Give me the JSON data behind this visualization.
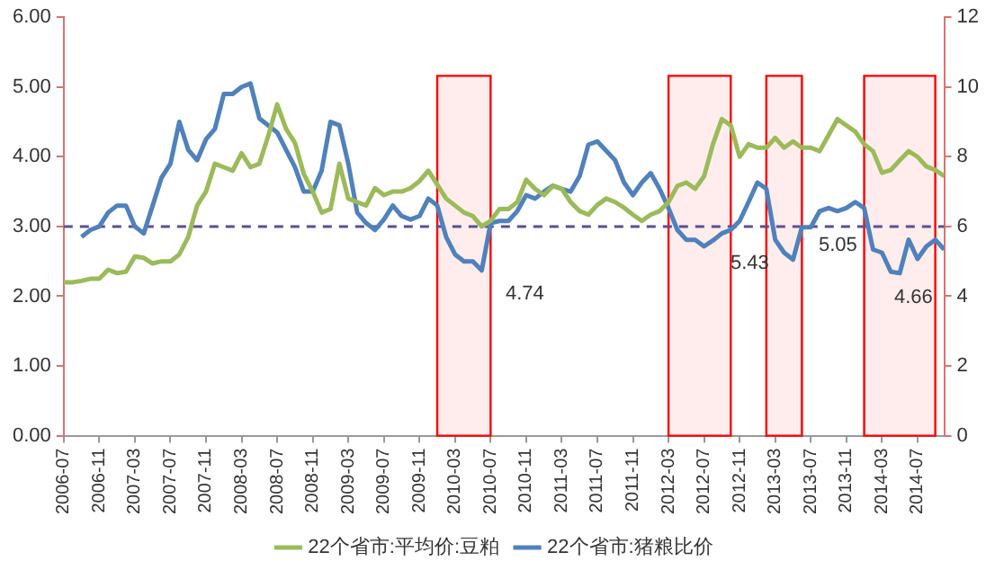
{
  "chart_data": {
    "type": "line",
    "x": [
      "2006-07",
      "2006-08",
      "2006-09",
      "2006-10",
      "2006-11",
      "2006-12",
      "2007-01",
      "2007-02",
      "2007-03",
      "2007-04",
      "2007-05",
      "2007-06",
      "2007-07",
      "2007-08",
      "2007-09",
      "2007-10",
      "2007-11",
      "2007-12",
      "2008-01",
      "2008-02",
      "2008-03",
      "2008-04",
      "2008-05",
      "2008-06",
      "2008-07",
      "2008-08",
      "2008-09",
      "2008-10",
      "2008-11",
      "2008-12",
      "2009-01",
      "2009-02",
      "2009-03",
      "2009-04",
      "2009-05",
      "2009-06",
      "2009-07",
      "2009-08",
      "2009-09",
      "2009-10",
      "2009-11",
      "2009-12",
      "2010-01",
      "2010-02",
      "2010-03",
      "2010-04",
      "2010-05",
      "2010-06",
      "2010-07",
      "2010-08",
      "2010-09",
      "2010-10",
      "2010-11",
      "2010-12",
      "2011-01",
      "2011-02",
      "2011-03",
      "2011-04",
      "2011-05",
      "2011-06",
      "2011-07",
      "2011-08",
      "2011-09",
      "2011-10",
      "2011-11",
      "2011-12",
      "2012-01",
      "2012-02",
      "2012-03",
      "2012-04",
      "2012-05",
      "2012-06",
      "2012-07",
      "2012-08",
      "2012-09",
      "2012-10",
      "2012-11",
      "2012-12",
      "2013-01",
      "2013-02",
      "2013-03",
      "2013-04",
      "2013-05",
      "2013-06",
      "2013-07",
      "2013-08",
      "2013-09",
      "2013-10",
      "2013-11",
      "2013-12",
      "2014-01",
      "2014-02",
      "2014-03",
      "2014-04",
      "2014-05",
      "2014-06",
      "2014-07",
      "2014-08",
      "2014-09",
      "2014-10"
    ],
    "series": [
      {
        "name": "22个省市:平均价:豆粕",
        "color": "#9bbb59",
        "values": [
          2.2,
          2.2,
          2.22,
          2.25,
          2.25,
          2.38,
          2.33,
          2.35,
          2.57,
          2.55,
          2.47,
          2.5,
          2.5,
          2.6,
          2.85,
          3.3,
          3.5,
          3.9,
          3.85,
          3.8,
          4.05,
          3.85,
          3.9,
          4.3,
          4.75,
          4.4,
          4.2,
          3.75,
          3.5,
          3.2,
          3.25,
          3.9,
          3.4,
          3.35,
          3.3,
          3.55,
          3.45,
          3.5,
          3.5,
          3.55,
          3.65,
          3.8,
          3.6,
          3.4,
          3.3,
          3.2,
          3.15,
          3.0,
          3.08,
          3.25,
          3.25,
          3.35,
          3.67,
          3.54,
          3.45,
          3.58,
          3.54,
          3.35,
          3.22,
          3.17,
          3.31,
          3.4,
          3.35,
          3.27,
          3.17,
          3.08,
          3.17,
          3.22,
          3.35,
          3.58,
          3.63,
          3.54,
          3.72,
          4.18,
          4.54,
          4.45,
          4.0,
          4.18,
          4.13,
          4.13,
          4.27,
          4.13,
          4.22,
          4.13,
          4.13,
          4.08,
          4.31,
          4.54,
          4.45,
          4.36,
          4.18,
          4.08,
          3.77,
          3.81,
          3.95,
          4.08,
          4.0,
          3.86,
          3.81,
          3.72
        ]
      },
      {
        "name": "22个省市:猪粮比价",
        "color": "#4f81bd",
        "axis": "y2",
        "values": [
          null,
          null,
          5.7,
          5.9,
          6.0,
          6.4,
          6.6,
          6.6,
          6.0,
          5.8,
          6.6,
          7.4,
          7.8,
          9.0,
          8.2,
          7.9,
          8.5,
          8.8,
          9.8,
          9.8,
          10.0,
          10.1,
          9.1,
          8.9,
          8.7,
          8.2,
          7.7,
          7.0,
          7.0,
          7.6,
          9.0,
          8.9,
          7.8,
          6.4,
          6.1,
          5.9,
          6.2,
          6.6,
          6.3,
          6.2,
          6.3,
          6.8,
          6.6,
          5.7,
          5.2,
          5.0,
          5.0,
          4.74,
          6.1,
          6.16,
          6.16,
          6.44,
          6.9,
          6.8,
          7.0,
          7.17,
          7.08,
          7.0,
          7.44,
          8.35,
          8.44,
          8.17,
          7.9,
          7.26,
          6.9,
          7.26,
          7.53,
          7.08,
          6.53,
          5.9,
          5.62,
          5.62,
          5.43,
          5.6,
          5.8,
          5.9,
          6.16,
          6.7,
          7.26,
          7.08,
          5.62,
          5.25,
          5.05,
          5.98,
          5.98,
          6.44,
          6.53,
          6.44,
          6.53,
          6.7,
          6.53,
          5.34,
          5.25,
          4.7,
          4.66,
          5.62,
          5.07,
          5.43,
          5.62,
          5.34
        ]
      }
    ],
    "xlim": [
      "2006-07",
      "2014-10"
    ],
    "xticks": [
      "2006-07",
      "2006-11",
      "2007-03",
      "2007-07",
      "2007-11",
      "2008-03",
      "2008-07",
      "2008-11",
      "2009-03",
      "2009-07",
      "2009-11",
      "2010-03",
      "2010-07",
      "2010-11",
      "2011-03",
      "2011-07",
      "2011-11",
      "2012-03",
      "2012-07",
      "2012-11",
      "2013-03",
      "2013-07",
      "2013-11",
      "2014-03",
      "2014-07"
    ],
    "ylim": [
      0,
      6
    ],
    "yticks": [
      {
        "value": 0,
        "label": "0.00"
      },
      {
        "value": 1,
        "label": "1.00"
      },
      {
        "value": 2,
        "label": "2.00"
      },
      {
        "value": 3,
        "label": "3.00"
      },
      {
        "value": 4,
        "label": "4.00"
      },
      {
        "value": 5,
        "label": "5.00"
      },
      {
        "value": 6,
        "label": "6.00"
      }
    ],
    "y2lim": [
      0,
      12
    ],
    "y2ticks": [
      0,
      2,
      4,
      6,
      8,
      10,
      12
    ],
    "ref_lines": [
      {
        "axis": "y",
        "value": 3,
        "color": "#5a4f96",
        "line_style": "dashed"
      }
    ],
    "bands": [
      {
        "axis": "x",
        "from": "2010-01",
        "to": "2010-07",
        "color": "#ff0000"
      },
      {
        "axis": "x",
        "from": "2012-03",
        "to": "2012-10",
        "color": "#ff0000"
      },
      {
        "axis": "x",
        "from": "2013-02",
        "to": "2013-06",
        "color": "#ff0000"
      },
      {
        "axis": "x",
        "from": "2014-01",
        "to": "2014-09",
        "color": "#ff0000"
      }
    ],
    "annotations": [
      "4.74",
      "5.43",
      "5.05",
      "4.66"
    ],
    "grid": false,
    "legend": "bottom"
  }
}
